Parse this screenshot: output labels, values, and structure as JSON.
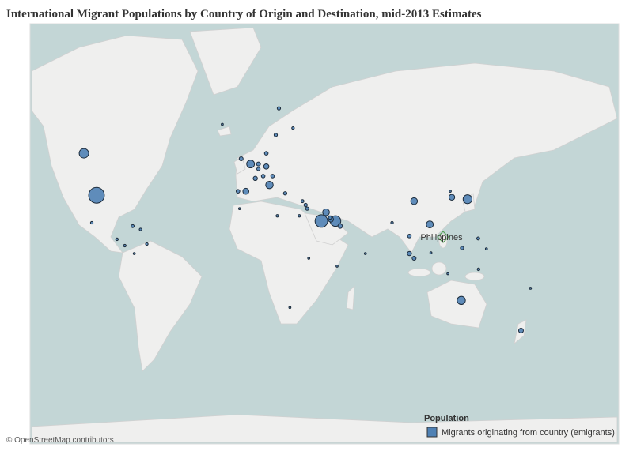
{
  "title": "International Migrant Populations by Country of Origin and Destination, mid-2013 Estimates",
  "place_label": "Philippines",
  "legend": {
    "title": "Population",
    "entry": "Migrants originating from country (emigrants)",
    "color": "#4f81b4"
  },
  "attribution": "© OpenStreetMap contributors",
  "markers": [
    {
      "lon": -106,
      "lat": 56,
      "value": 4
    },
    {
      "lon": -98,
      "lat": 38,
      "value": 11
    },
    {
      "lon": -101,
      "lat": 23,
      "value": 0.3
    },
    {
      "lon": -75,
      "lat": 21,
      "value": 0.4
    },
    {
      "lon": -70,
      "lat": 19,
      "value": 0.3
    },
    {
      "lon": -80,
      "lat": 9,
      "value": 0.3
    },
    {
      "lon": -85,
      "lat": 13,
      "value": 0.3
    },
    {
      "lon": -66,
      "lat": 10,
      "value": 0.3
    },
    {
      "lon": -74,
      "lat": 4,
      "value": 0.2
    },
    {
      "lon": -18,
      "lat": 65,
      "value": 0.2
    },
    {
      "lon": 18,
      "lat": 69,
      "value": 0.5
    },
    {
      "lon": 27,
      "lat": 64,
      "value": 0.3
    },
    {
      "lon": 16,
      "lat": 62,
      "value": 0.5
    },
    {
      "lon": 10,
      "lat": 56,
      "value": 0.6
    },
    {
      "lon": -6,
      "lat": 54,
      "value": 0.7
    },
    {
      "lon": 0,
      "lat": 52,
      "value": 2.7
    },
    {
      "lon": 5,
      "lat": 52,
      "value": 0.7
    },
    {
      "lon": 10,
      "lat": 51,
      "value": 1.2
    },
    {
      "lon": 5,
      "lat": 50,
      "value": 0.5
    },
    {
      "lon": 3,
      "lat": 46,
      "value": 0.8
    },
    {
      "lon": 8,
      "lat": 47,
      "value": 0.6
    },
    {
      "lon": 14,
      "lat": 47,
      "value": 0.6
    },
    {
      "lon": 12,
      "lat": 43,
      "value": 2.5
    },
    {
      "lon": -3,
      "lat": 40,
      "value": 1.6
    },
    {
      "lon": -8,
      "lat": 40,
      "value": 0.6
    },
    {
      "lon": 22,
      "lat": 39,
      "value": 0.5
    },
    {
      "lon": 33,
      "lat": 35,
      "value": 0.4
    },
    {
      "lon": 35,
      "lat": 33,
      "value": 0.5
    },
    {
      "lon": 36,
      "lat": 31,
      "value": 0.5
    },
    {
      "lon": 31,
      "lat": 27,
      "value": 0.3
    },
    {
      "lon": -7,
      "lat": 31,
      "value": 0.2
    },
    {
      "lon": 17,
      "lat": 27,
      "value": 0.3
    },
    {
      "lon": 45,
      "lat": 24,
      "value": 7
    },
    {
      "lon": 48,
      "lat": 29,
      "value": 2
    },
    {
      "lon": 50.5,
      "lat": 26,
      "value": 0.5
    },
    {
      "lon": 51,
      "lat": 25,
      "value": 1.3
    },
    {
      "lon": 54,
      "lat": 24,
      "value": 5
    },
    {
      "lon": 57,
      "lat": 21,
      "value": 0.9
    },
    {
      "lon": 37,
      "lat": 1,
      "value": 0.2
    },
    {
      "lon": 55,
      "lat": -4,
      "value": 0.2
    },
    {
      "lon": 25,
      "lat": -29,
      "value": 0.2
    },
    {
      "lon": 73,
      "lat": 4,
      "value": 0.2
    },
    {
      "lon": 90,
      "lat": 23,
      "value": 0.3
    },
    {
      "lon": 101,
      "lat": 15,
      "value": 0.6
    },
    {
      "lon": 101,
      "lat": 4,
      "value": 0.8
    },
    {
      "lon": 104,
      "lat": 1,
      "value": 0.7
    },
    {
      "lon": 114.7,
      "lat": 4.5,
      "value": 0.2
    },
    {
      "lon": 104,
      "lat": 35,
      "value": 2
    },
    {
      "lon": 114,
      "lat": 22,
      "value": 2.2
    },
    {
      "lon": 138,
      "lat": 36,
      "value": 3.5
    },
    {
      "lon": 128,
      "lat": 37,
      "value": 1.5
    },
    {
      "lon": 127,
      "lat": 40,
      "value": 0.2
    },
    {
      "lon": 144.8,
      "lat": 13.5,
      "value": 0.4
    },
    {
      "lon": 134.5,
      "lat": 7.5,
      "value": 0.5
    },
    {
      "lon": 150,
      "lat": 7,
      "value": 0.2
    },
    {
      "lon": 145,
      "lat": -6,
      "value": 0.3
    },
    {
      "lon": 125.5,
      "lat": -8.8,
      "value": 0.2
    },
    {
      "lon": 134,
      "lat": -25,
      "value": 3
    },
    {
      "lon": 172,
      "lat": -41,
      "value": 1
    },
    {
      "lon": 178,
      "lat": -17.8,
      "value": 0.2
    }
  ]
}
